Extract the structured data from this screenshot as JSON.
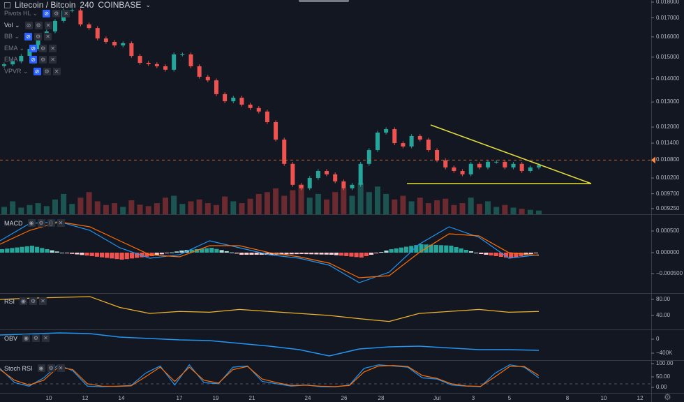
{
  "header": {
    "symbol": "Litecoin / Bitcoin",
    "interval": "240",
    "exchange": "COINBASE"
  },
  "indicators": [
    {
      "label": "Pivots HL",
      "active": true
    },
    {
      "label": "Vol",
      "active": false
    },
    {
      "label": "BB",
      "active": true
    },
    {
      "label": "EMA",
      "active": true
    },
    {
      "label": "EMA",
      "active": true
    },
    {
      "label": "VPVR",
      "active": true
    }
  ],
  "panes": {
    "macd": "MACD",
    "rsi": "RSI",
    "obv": "OBV",
    "stoch": "Stoch RSI"
  },
  "price_axis": [
    "0.018000",
    "0.017000",
    "0.016000",
    "0.015000",
    "0.014000",
    "0.013000",
    "0.012000",
    "0.011400",
    "0.010800",
    "0.010200",
    "0.009700",
    "0.009250"
  ],
  "macd_axis": [
    "0.000500",
    "0.000000",
    "−0.000500"
  ],
  "rsi_axis": [
    "80.00",
    "40.00"
  ],
  "obv_axis": [
    "0",
    "−400K"
  ],
  "stoch_axis": [
    "100.00",
    "50.00",
    "0.00"
  ],
  "time_axis": [
    "10",
    "12",
    "14",
    "17",
    "19",
    "21",
    "24",
    "26",
    "28",
    "Jul",
    "3",
    "5",
    "8",
    "10",
    "12"
  ],
  "colors": {
    "bg": "#131722",
    "up": "#26a69a",
    "down": "#ef5350",
    "trend": "#e7e13a",
    "macd": "#2196f3",
    "signal": "#ff6d00",
    "rsi": "#f0b429",
    "obv": "#2196f3",
    "last": "#ff8a3d"
  },
  "chart_data": {
    "type": "candlestick",
    "title": "Litecoin / Bitcoin, 240, COINBASE",
    "scale": "log",
    "ylim": [
      0.00925,
      0.018
    ],
    "close": [
      0.01466,
      0.0148,
      0.01506,
      0.0154,
      0.01603,
      0.01628,
      0.01684,
      0.01741,
      0.01741,
      0.01665,
      0.01646,
      0.01592,
      0.01575,
      0.01557,
      0.01568,
      0.01506,
      0.01473,
      0.01467,
      0.01457,
      0.01441,
      0.01513,
      0.01513,
      0.01457,
      0.01409,
      0.01393,
      0.01333,
      0.01303,
      0.01318,
      0.01289,
      0.01275,
      0.01261,
      0.01219,
      0.01153,
      0.01067,
      0.00998,
      0.00987,
      0.0102,
      0.01043,
      0.01032,
      0.01009,
      0.00987,
      0.00998,
      0.01067,
      0.01115,
      0.01179,
      0.01192,
      0.0114,
      0.01128,
      0.01166,
      0.01153,
      0.01115,
      0.01079,
      0.01055,
      0.01043,
      0.01032,
      0.01067,
      0.01055,
      0.01074,
      0.01074,
      0.01055,
      0.01067,
      0.01043,
      0.01055,
      0.01062
    ],
    "volume": [
      20,
      35,
      18,
      25,
      30,
      22,
      40,
      55,
      28,
      45,
      60,
      35,
      25,
      30,
      20,
      38,
      26,
      22,
      30,
      45,
      50,
      28,
      35,
      40,
      30,
      25,
      48,
      35,
      30,
      42,
      55,
      60,
      70,
      50,
      65,
      80,
      45,
      55,
      40,
      60,
      70,
      50,
      85,
      60,
      75,
      55,
      40,
      50,
      35,
      45,
      30,
      38,
      42,
      25,
      30,
      45,
      28,
      35,
      20,
      25,
      18,
      15,
      12,
      10
    ],
    "last_price": 0.0108,
    "trendlines": [
      {
        "from": [
          0.012,
          "Jun 30"
        ],
        "to": [
          0.0102,
          "Jul 9"
        ]
      },
      {
        "from": [
          0.0102,
          "Jun 29"
        ],
        "to": [
          0.0102,
          "Jul 9"
        ]
      }
    ],
    "macd": [
      0.000274,
      0.000677,
      0.00071,
      0.000516,
      0.000113,
      -0.000129,
      -4.8e-05,
      0.000274,
      0.000113,
      -4.8e-05,
      -0.000129,
      -0.00029,
      -0.000694,
      -0.000452,
      0.000194,
      0.000597,
      0.000355,
      -0.000129,
      -4.8e-05
    ],
    "signal": [
      0.000194,
      0.000516,
      0.00071,
      0.000597,
      0.000274,
      -4.8e-05,
      -9.7e-05,
      0.000161,
      0.000161,
      0,
      -9.7e-05,
      -0.000242,
      -0.000581,
      -0.000532,
      0,
      0.000435,
      0.000387,
      0,
      -6.5e-05
    ],
    "rsi": [
      80,
      83,
      85,
      87,
      60,
      45,
      50,
      48,
      55,
      50,
      45,
      40,
      32,
      25,
      45,
      50,
      55,
      48,
      50
    ],
    "obv": [
      120000,
      150000,
      180000,
      160000,
      60000,
      20000,
      -20000,
      -40000,
      -120000,
      -200000,
      -300000,
      -480000,
      -280000,
      -220000,
      -200000,
      -250000,
      -300000,
      -300000,
      -320000
    ],
    "stoch_k": [
      80,
      20,
      5,
      40,
      95,
      70,
      5,
      3,
      5,
      8,
      60,
      90,
      10,
      95,
      20,
      15,
      85,
      90,
      25,
      15,
      5,
      10,
      3,
      2,
      10,
      80,
      95,
      90,
      85,
      40,
      35,
      10,
      5,
      3,
      60,
      95,
      85,
      40
    ],
    "stoch_d": [
      75,
      30,
      10,
      30,
      85,
      75,
      15,
      5,
      4,
      6,
      45,
      85,
      25,
      85,
      30,
      18,
      75,
      88,
      35,
      20,
      8,
      9,
      5,
      3,
      8,
      65,
      90,
      92,
      88,
      50,
      38,
      15,
      6,
      4,
      45,
      88,
      88,
      50
    ]
  }
}
